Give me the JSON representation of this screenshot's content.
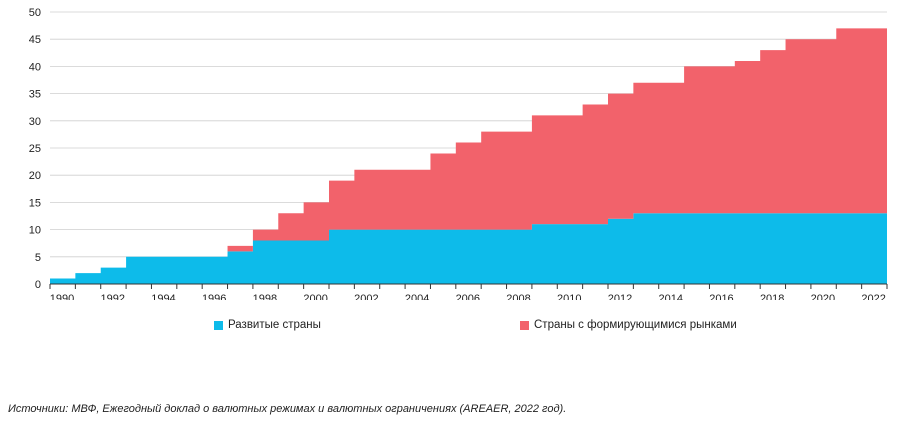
{
  "chart_data": {
    "type": "area",
    "step": true,
    "title": "",
    "xlabel": "",
    "ylabel": "",
    "ylim": [
      0,
      50
    ],
    "yticks": [
      0,
      5,
      10,
      15,
      20,
      25,
      30,
      35,
      40,
      45,
      50
    ],
    "xlim": [
      1990,
      2023
    ],
    "x_tick_labels": [
      "1990",
      "1992",
      "1994",
      "1996",
      "1998",
      "2000",
      "2002",
      "2004",
      "2006",
      "2008",
      "2010",
      "2012",
      "2014",
      "2016",
      "2018",
      "2020",
      "2022"
    ],
    "x": [
      1990,
      1991,
      1992,
      1993,
      1994,
      1995,
      1996,
      1997,
      1998,
      1999,
      2000,
      2001,
      2002,
      2003,
      2004,
      2005,
      2006,
      2007,
      2008,
      2009,
      2010,
      2011,
      2012,
      2013,
      2014,
      2015,
      2016,
      2017,
      2018,
      2019,
      2020,
      2021,
      2022
    ],
    "series": [
      {
        "name": "Развитые страны",
        "color": "#0dbbea",
        "values": [
          1,
          2,
          3,
          5,
          5,
          5,
          5,
          6,
          8,
          8,
          8,
          10,
          10,
          10,
          10,
          10,
          10,
          10,
          10,
          11,
          11,
          11,
          12,
          13,
          13,
          13,
          13,
          13,
          13,
          13,
          13,
          13,
          13
        ]
      },
      {
        "name": "Страны с формирующимися рынками",
        "color": "#f2626b",
        "values": [
          0,
          0,
          0,
          0,
          0,
          0,
          0,
          1,
          2,
          5,
          7,
          9,
          11,
          11,
          11,
          14,
          16,
          18,
          18,
          20,
          20,
          22,
          23,
          24,
          24,
          27,
          27,
          28,
          30,
          32,
          32,
          34,
          34
        ]
      }
    ],
    "legend_position": "bottom"
  },
  "legend": {
    "developed": "Развитые страны",
    "emerging": "Страны с формирующимися рынками"
  },
  "source": "Источники: МВФ, Ежегодный доклад о валютных режимах и валютных ограничениях (AREAER, 2022 год)."
}
